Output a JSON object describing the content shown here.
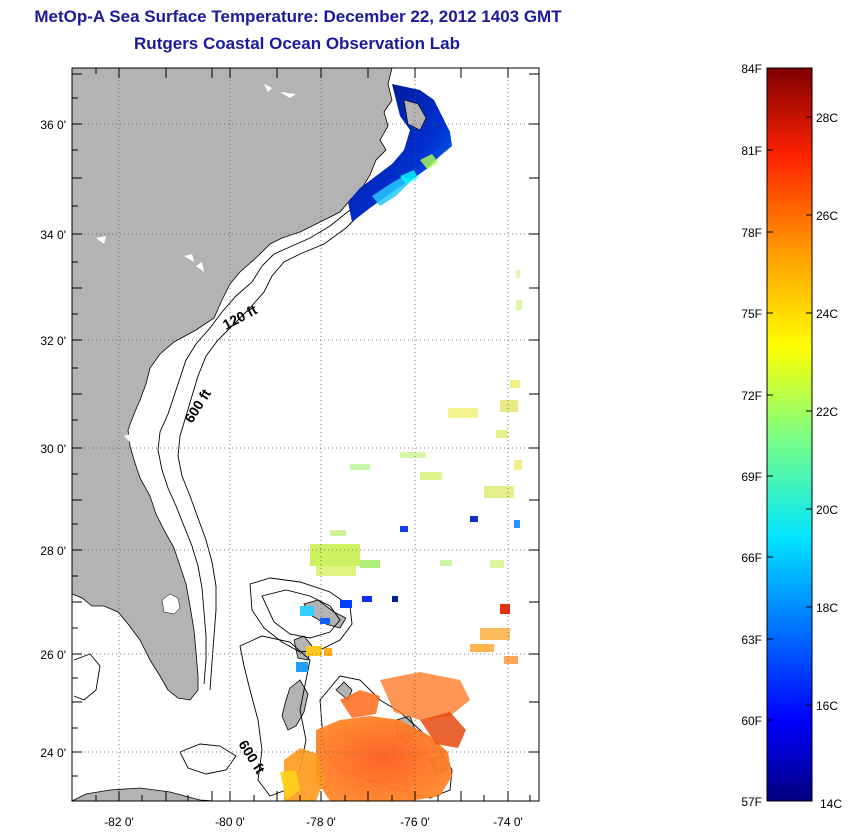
{
  "title": "MetOp-A Sea Surface Temperature:  December 22, 2012 1403 GMT",
  "subtitle": "Rutgers Coastal Ocean Observation Lab",
  "map": {
    "lon_ticks": [
      "-82 0'",
      "-80 0'",
      "-78 0'",
      "-76 0'",
      "-74 0'"
    ],
    "lat_ticks": [
      "36 0'",
      "34 0'",
      "32 0'",
      "30 0'",
      "28 0'",
      "26 0'",
      "24 0'"
    ],
    "contour_labels": [
      "120 ft",
      "600 ft",
      "600 ft"
    ],
    "land_color": "#b3b3b3"
  },
  "colorbar": {
    "fahrenheit_ticks": [
      "84F",
      "81F",
      "78F",
      "75F",
      "72F",
      "69F",
      "66F",
      "63F",
      "60F",
      "57F"
    ],
    "celsius_ticks": [
      "28C",
      "26C",
      "24C",
      "22C",
      "20C",
      "18C",
      "16C",
      "14C"
    ],
    "range_celsius": [
      14,
      29
    ],
    "range_fahrenheit": [
      57,
      84
    ]
  }
}
